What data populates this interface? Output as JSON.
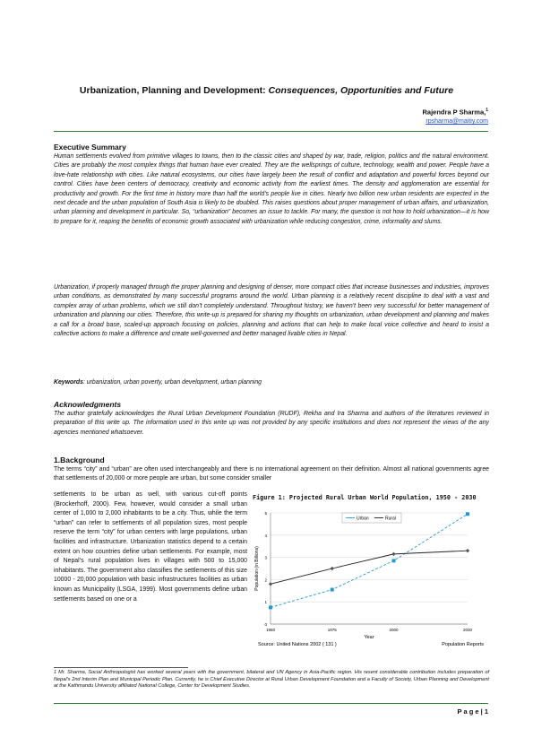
{
  "title_main": "Urbanization, Planning and Development: ",
  "title_italic": "Consequences, Opportunities and Future",
  "author": "Rajendra P Sharma,",
  "author_sup": "1",
  "email": "rpsharma@maitiy.com",
  "exec_heading": "Executive Summary",
  "exec_p1": "Human settlements evolved from primitive villages to towns, then to the classic cities and shaped by war, trade, religion, politics and the natural environment. Cities are probably the most complex things that human have ever created. They are the wellsprings of culture, technology, wealth and power. People have a love-hate relationship with cities. Like natural ecosystems, our cities have largely been the result of conflict and adaptation and powerful forces beyond our control. Cities have been centers of democracy, creativity and economic activity from the earliest times. The density and agglomeration are essential for productivity and growth. For the first time in history more than half the world’s people live in cities. Nearly two billion new urban residents are expected in the next decade and the urban population of South Asia is likely to be doubled. This raises questions about proper management of urban affairs, and urbanization, urban planning and development in particular. So, “urbanization” becomes an issue to tackle. For many, the question is not how to hold urbanization—it is how to prepare for it, reaping the benefits of economic growth associated with urbanization while reducing congestion, crime, informality and slums.",
  "exec_p2": "Urbanization, if properly managed through the proper planning and designing of denser, more compact cities that increase businesses and industries, improves urban conditions, as demonstrated by many successful programs around the world. Urban planning is a relatively recent discipline to deal with a vast and complex array of urban problems, which we still don’t completely understand. Throughout history, we haven’t been very successful for better management of urbanization and planning our cities. Therefore, this write-up is prepared for sharing my thoughts on urbanization, urban development and planning and makes a call for a broad base, scaled-up approach focusing on policies, planning and actions that can help to make local voice collective and heard to insist a collective actions to make a difference and create well-governed and better managed livable cities in Nepal.",
  "keywords_label": "Keywords",
  "keywords": ": urbanization, urban poverty, urban development, urban planning",
  "ack_heading": "Acknowledgments",
  "ack_p": "The author gratefully acknowledges the Rural Urban Development Foundation (RUDF), Rekha and Ira Sharma and authors of the literatures reviewed in preparation of this write up. The information used in this write up was not provided by any specific institutions and does not represent the views of the any agencies mentioned whatsoever.",
  "bg_heading": "1.Background",
  "bg_p1": "The terms “city” and “urban” are often used interchangeably and there is no international agreement on their definition. Almost all national governments agree that settlements of 20,000 or more people are urban, but some consider smaller",
  "bg_left": "settlements to be urban as well, with various cut-off points (Brockerhoff, 2000). Few, however, would consider a small urban center of 1,000 to 2,000 inhabitants to be a city. Thus, while the term “urban” can refer to settlements of all population sizes, most people reserve the term “city” for urban centers with large populations, urban facilities and infrastructure. Urbanization statistics depend to a certain extent on how countries define urban settlements. For example, most of Nepal’s rural population lives in villages with 500 to 15,000 inhabitants. The government also classifies the settlements of this size 10000 - 20,000 population with basic infrastructures facilities as urban known as Municipality (LSGA, 1999). Most governments define urban settlements based on one or a",
  "footnote": "1  Mr. Sharma, Social Anthropologist has worked several years with the government, bilateral and UN Agency in Asia-Pacific region. His resent considerable contribution includes preparation of Nepal’s 2nd Interim Plan and Municipal Periodic Plan. Currently, he is Chief Executive Director at Rural Urban Development Foundation and a Faculty of Society, Urban Planning and Development at the Kathmandu University affiliated National College, Center for Development Studies.",
  "page_label": "P a g e  |  1",
  "colors": {
    "rule": "#2e7d32",
    "urban": "#222222",
    "rural": "#1e9bd7",
    "link": "#1f4fd6"
  },
  "chart_data": {
    "type": "line",
    "title": "Figure 1: Projected Rural Urban World Population, 1950 - 2030",
    "xlabel": "Year",
    "ylabel": "Population (in Billions)",
    "x": [
      1950,
      1975,
      2000,
      2030
    ],
    "ylim": [
      0,
      5
    ],
    "yticks": [
      0,
      1,
      2,
      3,
      4,
      5
    ],
    "series": [
      {
        "name": "Urban",
        "values": [
          0.75,
          1.55,
          2.85,
          4.95
        ]
      },
      {
        "name": "Rural",
        "values": [
          1.8,
          2.5,
          3.15,
          3.3
        ]
      }
    ],
    "legend": "top-right",
    "source": "Source: United Nations 2002 ( 131 )",
    "source_right": "Population Reports"
  }
}
